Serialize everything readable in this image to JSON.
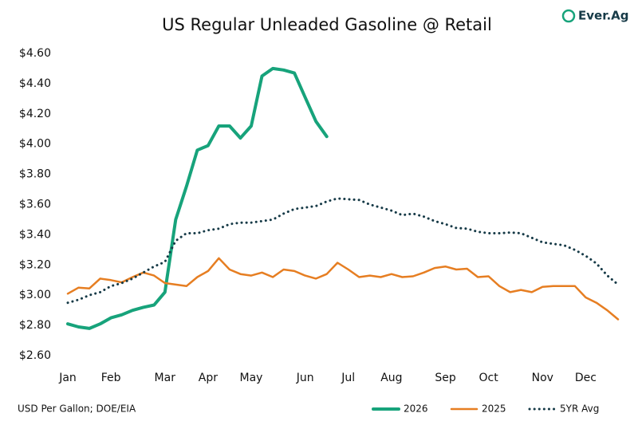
{
  "chart_data": {
    "type": "line",
    "title": "US Regular Unleaded Gasoline @ Retail",
    "logo_text": "Ever.Ag",
    "source": "USD Per Gallon; DOE/EIA",
    "categories": [
      "Jan",
      null,
      null,
      null,
      "Feb",
      null,
      null,
      null,
      null,
      "Mar",
      null,
      null,
      null,
      "Apr",
      null,
      null,
      null,
      "May",
      null,
      null,
      null,
      null,
      "Jun",
      null,
      null,
      null,
      "Jul",
      null,
      null,
      null,
      "Aug",
      null,
      null,
      null,
      null,
      "Sep",
      null,
      null,
      null,
      "Oct",
      null,
      null,
      null,
      null,
      "Nov",
      null,
      null,
      null,
      "Dec",
      null,
      null,
      null
    ],
    "series": [
      {
        "name": "2026",
        "color": "#17a37b",
        "style": "solid",
        "values": [
          2.81,
          2.79,
          2.78,
          2.81,
          2.85,
          2.87,
          2.9,
          2.92,
          2.935,
          3.02,
          3.5,
          3.72,
          3.96,
          3.99,
          4.12,
          4.12,
          4.04,
          4.12,
          4.45,
          4.5,
          4.49,
          4.47,
          4.31,
          4.15,
          4.05,
          null,
          null,
          null,
          null,
          null,
          null,
          null,
          null,
          null,
          null,
          null,
          null,
          null,
          null,
          null,
          null,
          null,
          null,
          null,
          null,
          null,
          null,
          null,
          null,
          null,
          null,
          null
        ]
      },
      {
        "name": "2025",
        "color": "#e67e22",
        "style": "solid",
        "values": [
          3.01,
          3.05,
          3.045,
          3.11,
          3.1,
          3.085,
          3.12,
          3.15,
          3.13,
          3.08,
          3.07,
          3.06,
          3.12,
          3.16,
          3.245,
          3.17,
          3.14,
          3.13,
          3.15,
          3.12,
          3.17,
          3.16,
          3.13,
          3.11,
          3.14,
          3.215,
          3.17,
          3.12,
          3.13,
          3.12,
          3.14,
          3.12,
          3.125,
          3.15,
          3.18,
          3.19,
          3.17,
          3.175,
          3.12,
          3.125,
          3.06,
          3.02,
          3.035,
          3.02,
          3.055,
          3.06,
          3.06,
          3.06,
          2.985,
          2.95,
          2.9,
          2.84
        ]
      },
      {
        "name": "5YR Avg",
        "color": "#163a47",
        "style": "dotted",
        "values": [
          2.95,
          2.97,
          3.0,
          3.02,
          3.06,
          3.08,
          3.11,
          3.15,
          3.19,
          3.22,
          3.36,
          3.41,
          3.41,
          3.43,
          3.44,
          3.47,
          3.48,
          3.48,
          3.49,
          3.5,
          3.54,
          3.57,
          3.58,
          3.59,
          3.62,
          3.64,
          3.635,
          3.63,
          3.6,
          3.58,
          3.56,
          3.53,
          3.54,
          3.52,
          3.49,
          3.47,
          3.445,
          3.44,
          3.42,
          3.41,
          3.41,
          3.415,
          3.41,
          3.38,
          3.35,
          3.34,
          3.33,
          3.3,
          3.26,
          3.21,
          3.13,
          3.07
        ]
      }
    ],
    "ylim": [
      2.6,
      4.6
    ],
    "yticks": [
      {
        "value": 2.6,
        "label": "$2.60"
      },
      {
        "value": 2.8,
        "label": "$2.80"
      },
      {
        "value": 3.0,
        "label": "$3.00"
      },
      {
        "value": 3.2,
        "label": "$3.20"
      },
      {
        "value": 3.4,
        "label": "$3.40"
      },
      {
        "value": 3.6,
        "label": "$3.60"
      },
      {
        "value": 3.8,
        "label": "$3.80"
      },
      {
        "value": 4.0,
        "label": "$4.00"
      },
      {
        "value": 4.2,
        "label": "$4.20"
      },
      {
        "value": 4.4,
        "label": "$4.40"
      },
      {
        "value": 4.6,
        "label": "$4.60"
      }
    ],
    "grid": false,
    "legend": "bottom-right"
  }
}
